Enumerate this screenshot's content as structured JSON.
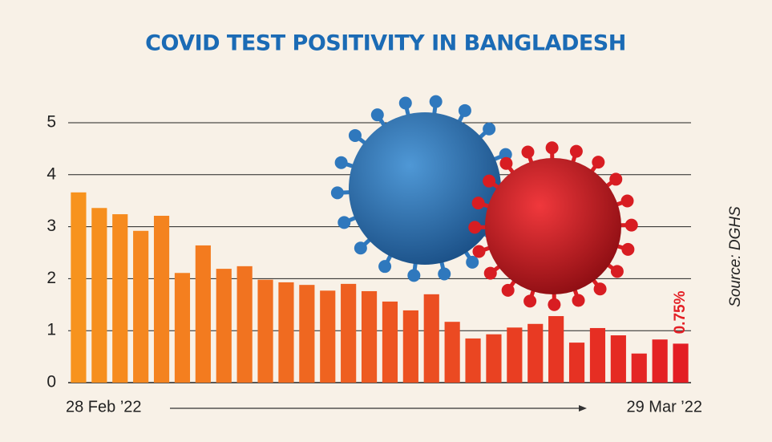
{
  "chart_data": {
    "type": "bar",
    "title": "COVID TEST POSITIVITY IN BANGLADESH",
    "source": "Source: DGHS",
    "categories": [
      "28 Feb ’22",
      null,
      null,
      null,
      null,
      null,
      null,
      null,
      null,
      null,
      null,
      null,
      null,
      null,
      null,
      null,
      null,
      null,
      null,
      null,
      null,
      null,
      null,
      null,
      null,
      null,
      null,
      null,
      null,
      "29 Mar ’22"
    ],
    "values": [
      3.66,
      3.36,
      3.24,
      2.92,
      3.21,
      2.11,
      2.64,
      2.19,
      2.24,
      1.98,
      1.93,
      1.88,
      1.77,
      1.9,
      1.76,
      1.56,
      1.39,
      1.7,
      1.17,
      0.85,
      0.93,
      1.06,
      1.13,
      1.28,
      0.77,
      1.05,
      0.91,
      0.56,
      0.83,
      0.75
    ],
    "value_labels": [
      null,
      null,
      null,
      null,
      null,
      null,
      null,
      null,
      null,
      null,
      null,
      null,
      null,
      null,
      null,
      null,
      null,
      null,
      null,
      null,
      null,
      null,
      null,
      null,
      null,
      null,
      null,
      null,
      null,
      "0.75%"
    ],
    "color_gradient": [
      "#f7931e",
      "#e31e24"
    ],
    "ylim": [
      0,
      5
    ],
    "yticks": [
      0,
      1,
      2,
      3,
      4,
      5
    ],
    "grid": true
  }
}
